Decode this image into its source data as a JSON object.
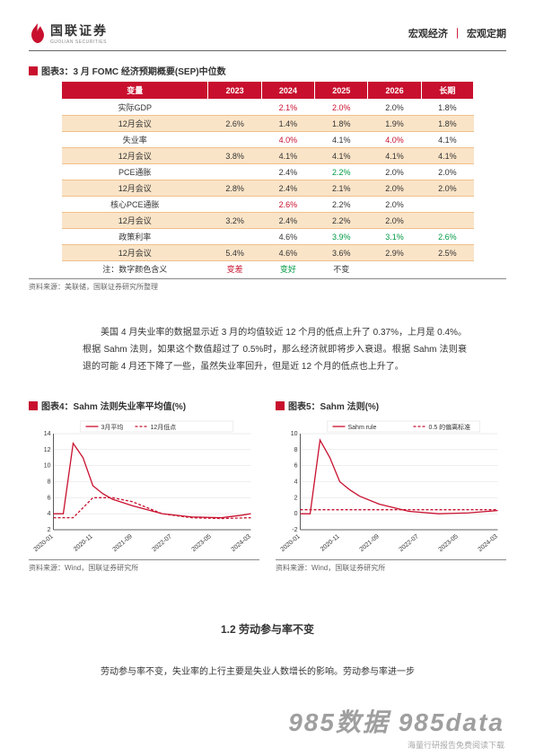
{
  "header": {
    "brand_cn": "国联证券",
    "brand_en": "GUOLIAN SECURITIES",
    "right_left": "宏观经济",
    "right_right": "宏观定期"
  },
  "table": {
    "title": "图表3：3 月 FOMC 经济预期概要(SEP)中位数",
    "source": "资料来源：美联储，国联证券研究所整理",
    "cols": [
      "变量",
      "2023",
      "2024",
      "2025",
      "2026",
      "长期"
    ],
    "rows": [
      {
        "label": "实际GDP",
        "vals": [
          [
            "",
            ""
          ],
          [
            "2.1%",
            "red"
          ],
          [
            "2.0%",
            "red"
          ],
          [
            "2.0%",
            ""
          ],
          [
            "1.8%",
            ""
          ]
        ],
        "alt": false
      },
      {
        "label": "12月会议",
        "vals": [
          [
            "2.6%",
            ""
          ],
          [
            "1.4%",
            ""
          ],
          [
            "1.8%",
            ""
          ],
          [
            "1.9%",
            ""
          ],
          [
            "1.8%",
            ""
          ]
        ],
        "alt": true
      },
      {
        "label": "失业率",
        "vals": [
          [
            "",
            ""
          ],
          [
            "4.0%",
            "red"
          ],
          [
            "4.1%",
            ""
          ],
          [
            "4.0%",
            "red"
          ],
          [
            "4.1%",
            ""
          ]
        ],
        "alt": false
      },
      {
        "label": "12月会议",
        "vals": [
          [
            "3.8%",
            ""
          ],
          [
            "4.1%",
            ""
          ],
          [
            "4.1%",
            ""
          ],
          [
            "4.1%",
            ""
          ],
          [
            "4.1%",
            ""
          ]
        ],
        "alt": true
      },
      {
        "label": "PCE通胀",
        "vals": [
          [
            "",
            ""
          ],
          [
            "2.4%",
            ""
          ],
          [
            "2.2%",
            "green"
          ],
          [
            "2.0%",
            ""
          ],
          [
            "2.0%",
            ""
          ]
        ],
        "alt": false
      },
      {
        "label": "12月会议",
        "vals": [
          [
            "2.8%",
            ""
          ],
          [
            "2.4%",
            ""
          ],
          [
            "2.1%",
            ""
          ],
          [
            "2.0%",
            ""
          ],
          [
            "2.0%",
            ""
          ]
        ],
        "alt": true
      },
      {
        "label": "核心PCE通胀",
        "vals": [
          [
            "",
            ""
          ],
          [
            "2.6%",
            "red"
          ],
          [
            "2.2%",
            ""
          ],
          [
            "2.0%",
            ""
          ],
          [
            "",
            ""
          ]
        ],
        "alt": false
      },
      {
        "label": "12月会议",
        "vals": [
          [
            "3.2%",
            ""
          ],
          [
            "2.4%",
            ""
          ],
          [
            "2.2%",
            ""
          ],
          [
            "2.0%",
            ""
          ],
          [
            "",
            ""
          ]
        ],
        "alt": true
      },
      {
        "label": "政策利率",
        "vals": [
          [
            "",
            ""
          ],
          [
            "4.6%",
            ""
          ],
          [
            "3.9%",
            "green"
          ],
          [
            "3.1%",
            "green"
          ],
          [
            "2.6%",
            "green"
          ]
        ],
        "alt": false
      },
      {
        "label": "12月会议",
        "vals": [
          [
            "5.4%",
            ""
          ],
          [
            "4.6%",
            ""
          ],
          [
            "3.6%",
            ""
          ],
          [
            "2.9%",
            ""
          ],
          [
            "2.5%",
            ""
          ]
        ],
        "alt": true
      }
    ],
    "legend": {
      "label": "注：数字颜色含义",
      "items": [
        [
          "变差",
          "red"
        ],
        [
          "变好",
          "green"
        ],
        [
          "不变",
          ""
        ]
      ]
    }
  },
  "paragraph1": "美国 4 月失业率的数据显示近 3 月的均值较近 12 个月的低点上升了 0.37%，上月是 0.4%。根据 Sahm 法则，如果这个数值超过了 0.5%时，那么经济就即将步入衰退。根据 Sahm 法则衰退的可能 4 月还下降了一些，虽然失业率回升，但是近 12 个月的低点也上升了。",
  "chart4": {
    "title": "图表4：Sahm 法则失业率平均值(%)",
    "source": "资料来源：Wind，国联证券研究所",
    "legend": [
      "3月平均",
      "12月低点"
    ],
    "type": "line",
    "xticks": [
      "2020-01",
      "2020-11",
      "2021-09",
      "2022-07",
      "2023-05",
      "2024-03"
    ],
    "ylim": [
      2,
      14
    ],
    "yticks": [
      2,
      4,
      6,
      8,
      10,
      12,
      14
    ],
    "series": [
      {
        "name": "3月平均",
        "color": "#c8102e",
        "dash": "none",
        "points": [
          [
            0,
            4
          ],
          [
            5,
            4
          ],
          [
            10,
            12.8
          ],
          [
            15,
            11
          ],
          [
            20,
            7.5
          ],
          [
            25,
            6.5
          ],
          [
            30,
            5.8
          ],
          [
            40,
            5
          ],
          [
            55,
            4
          ],
          [
            70,
            3.6
          ],
          [
            85,
            3.5
          ],
          [
            95,
            3.8
          ],
          [
            100,
            4
          ]
        ]
      },
      {
        "name": "12月低点",
        "color": "#c8102e",
        "dash": "3,2",
        "points": [
          [
            0,
            3.5
          ],
          [
            5,
            3.5
          ],
          [
            10,
            3.5
          ],
          [
            20,
            6
          ],
          [
            30,
            6
          ],
          [
            40,
            5.5
          ],
          [
            55,
            4
          ],
          [
            70,
            3.5
          ],
          [
            85,
            3.4
          ],
          [
            100,
            3.5
          ]
        ]
      }
    ],
    "grid_color": "#dddddd",
    "axis_color": "#333333",
    "legend_box": "#dddddd"
  },
  "chart5": {
    "title": "图表5：Sahm 法则(%)",
    "source": "资料来源：Wind，国联证券研究所",
    "legend": [
      "Sahm rule",
      "0.5 的偏离标准"
    ],
    "type": "line",
    "xticks": [
      "2020-01",
      "2020-11",
      "2021-09",
      "2022-07",
      "2023-05",
      "2024-03"
    ],
    "ylim": [
      -2,
      10
    ],
    "yticks": [
      -2,
      0,
      2,
      4,
      6,
      8,
      10
    ],
    "series": [
      {
        "name": "Sahm rule",
        "color": "#c8102e",
        "dash": "none",
        "points": [
          [
            0,
            0
          ],
          [
            5,
            0
          ],
          [
            10,
            9.2
          ],
          [
            15,
            7
          ],
          [
            20,
            4
          ],
          [
            25,
            3
          ],
          [
            30,
            2.2
          ],
          [
            40,
            1.2
          ],
          [
            55,
            0.3
          ],
          [
            70,
            0
          ],
          [
            85,
            0.1
          ],
          [
            100,
            0.4
          ]
        ]
      },
      {
        "name": "0.5",
        "color": "#c8102e",
        "dash": "3,2",
        "points": [
          [
            0,
            0.5
          ],
          [
            100,
            0.5
          ]
        ]
      }
    ],
    "grid_color": "#dddddd",
    "axis_color": "#333333",
    "legend_box": "#dddddd"
  },
  "section": "1.2 劳动参与率不变",
  "paragraph2": "劳动参与率不变，失业率的上行主要是失业人数增长的影响。劳动参与率进一步",
  "watermark": {
    "main": "985数据 985data",
    "sub": "海量行研报告免费阅读下载"
  }
}
